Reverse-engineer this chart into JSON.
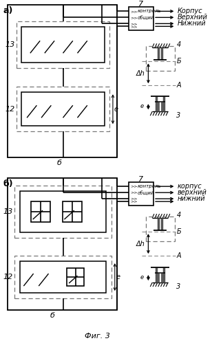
{
  "fig_label": "Фиг. 3",
  "bg_color": "#ffffff",
  "label_a": "а)",
  "label_b_diag": "б)",
  "label_13": "13",
  "label_12": "12",
  "label_7": "7",
  "label_b_low": "б",
  "label_l": "е",
  "label_3": "3",
  "label_4": "4",
  "label_B": "Б",
  "label_A": "А",
  "label_dh": "Δh",
  "label_kontrol": "контроль",
  "label_obsh": "общий",
  "label_korpus_cap": "Корпус",
  "label_verkh_cap": "Верхний",
  "label_nizh_cap": "Нижний",
  "label_korpus": "корпус",
  "label_verkh": "верхний",
  "label_nizh": "нижний"
}
